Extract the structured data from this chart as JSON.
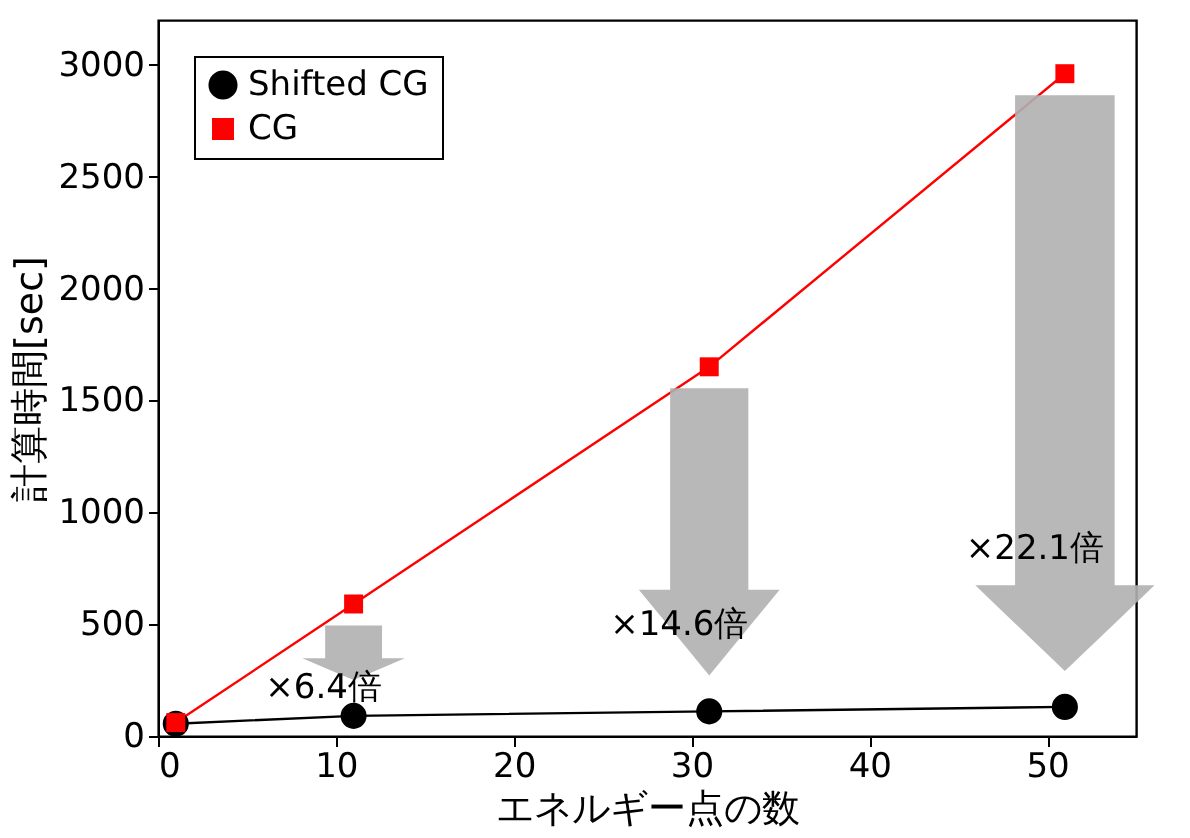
{
  "chart_data": {
    "type": "line",
    "xlabel": "エネルギー点の数",
    "ylabel": "計算時間[sec]",
    "x": [
      1,
      11,
      31,
      51
    ],
    "series": [
      {
        "name": "Shifted CG",
        "color": "#000000",
        "marker": "circle",
        "values": [
          55,
          90,
          110,
          130
        ]
      },
      {
        "name": "CG",
        "color": "#ff0000",
        "marker": "square",
        "values": [
          60,
          590,
          1650,
          2960
        ]
      }
    ],
    "xlim": [
      0,
      55
    ],
    "xticks": [
      0,
      10,
      20,
      30,
      40,
      50
    ],
    "ylim": [
      0,
      3200
    ],
    "yticks": [
      0,
      500,
      1000,
      1500,
      2000,
      2500,
      3000
    ],
    "grid": false,
    "legend": "top left",
    "line_style": "solid",
    "annotations": [
      "×6.4倍",
      "×14.6倍",
      "×22.1倍"
    ]
  }
}
